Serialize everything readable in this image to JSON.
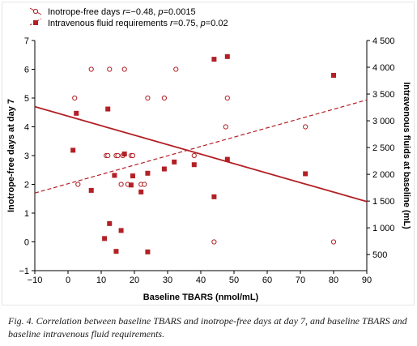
{
  "chart_data": {
    "type": "scatter",
    "xlabel": "Baseline TBARS (nmol/mL)",
    "ylabel_left": "Inotrope-free days at day 7",
    "ylabel_right": "Intravenous fluids at baseline (mL)",
    "xlim": [
      -10,
      90
    ],
    "ylim_left": [
      -1,
      7
    ],
    "ylim_right": [
      200,
      4500
    ],
    "x_ticks": [
      "-10",
      "0",
      "10",
      "20",
      "30",
      "40",
      "50",
      "60",
      "70",
      "80",
      "90"
    ],
    "y_left_ticks": [
      "-1",
      "0",
      "1",
      "2",
      "3",
      "4",
      "5",
      "6",
      "7"
    ],
    "y_right_ticks": [
      "500",
      "1 000",
      "1 500",
      "2 000",
      "2 500",
      "3 000",
      "3 500",
      "4 000",
      "4 500"
    ],
    "legend_position": "top-left",
    "grid": false,
    "series": [
      {
        "name": "Inotrope-free days",
        "stat_prefix": "r",
        "stat_r": "=−0.48, ",
        "stat_p_prefix": "p",
        "stat_p": "=0.0015",
        "axis": "left",
        "marker": "open-circle",
        "trend": "solid",
        "trend_points": [
          [
            -10,
            4.7
          ],
          [
            90,
            1.4
          ]
        ],
        "points": [
          [
            2,
            5
          ],
          [
            3,
            2
          ],
          [
            7,
            6
          ],
          [
            11.5,
            3
          ],
          [
            12,
            3
          ],
          [
            12.5,
            6
          ],
          [
            14.5,
            3
          ],
          [
            15,
            3
          ],
          [
            16,
            2
          ],
          [
            16.5,
            3
          ],
          [
            17,
            6
          ],
          [
            18,
            2
          ],
          [
            19,
            3
          ],
          [
            19.5,
            3
          ],
          [
            22,
            2
          ],
          [
            23,
            2
          ],
          [
            24,
            5
          ],
          [
            29,
            5
          ],
          [
            32.5,
            6
          ],
          [
            38,
            3
          ],
          [
            44,
            0
          ],
          [
            47.5,
            4
          ],
          [
            48,
            5
          ],
          [
            71.5,
            4
          ],
          [
            80,
            0
          ]
        ]
      },
      {
        "name": "Intravenous fluid requirements",
        "stat_prefix": "r",
        "stat_r": "=0.75, ",
        "stat_p_prefix": "p",
        "stat_p": "=0.02",
        "axis": "right",
        "marker": "filled-square",
        "trend": "dashed",
        "trend_points": [
          [
            -10,
            1650
          ],
          [
            90,
            3390
          ]
        ],
        "points": [
          [
            1.5,
            2450
          ],
          [
            2.5,
            3140
          ],
          [
            7,
            1700
          ],
          [
            11,
            800
          ],
          [
            12,
            3220
          ],
          [
            12.5,
            1080
          ],
          [
            14,
            1980
          ],
          [
            14.5,
            560
          ],
          [
            16,
            950
          ],
          [
            17,
            2380
          ],
          [
            19,
            1800
          ],
          [
            19.5,
            1970
          ],
          [
            22,
            1670
          ],
          [
            24,
            550
          ],
          [
            24,
            2020
          ],
          [
            29,
            2100
          ],
          [
            32,
            2230
          ],
          [
            38,
            2180
          ],
          [
            44,
            1580
          ],
          [
            44,
            4150
          ],
          [
            48,
            4200
          ],
          [
            48,
            2280
          ],
          [
            71.5,
            2010
          ],
          [
            80,
            3850
          ]
        ]
      }
    ]
  },
  "caption": {
    "text": "Fig. 4. Correlation between baseline TBARS and inotrope-free days at day 7, and baseline TBARS and baseline intravenous fluid requirements."
  },
  "colors": {
    "series": "#b22025",
    "axis": "#000000"
  }
}
